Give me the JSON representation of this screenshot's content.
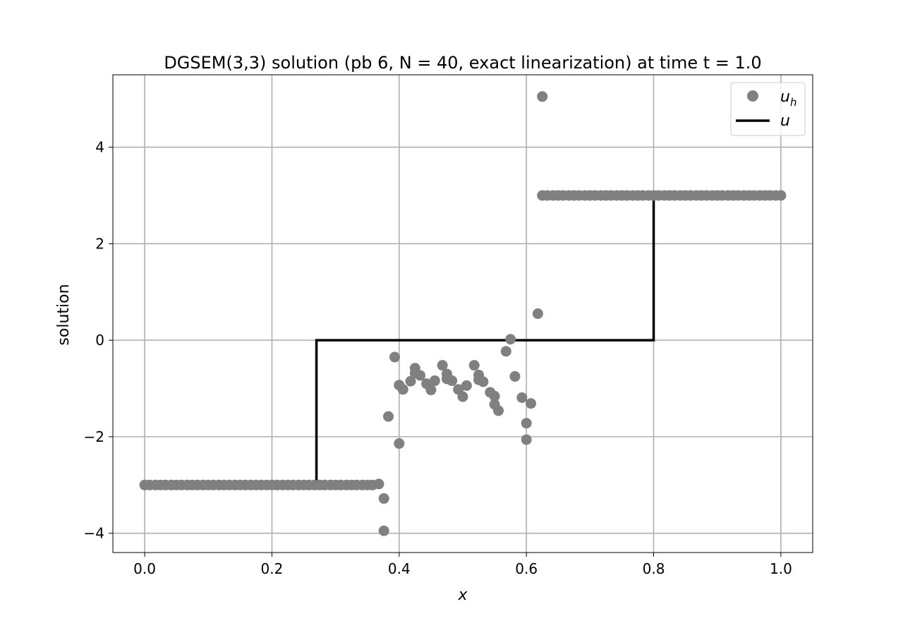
{
  "chart_data": {
    "type": "scatter",
    "title": "DGSEM(3,3) solution (pb 6, N = 40, exact linearization) at time t = 1.0",
    "xlabel": "x",
    "ylabel": "solution",
    "xlim": [
      -0.05,
      1.05
    ],
    "ylim": [
      -4.4,
      5.5
    ],
    "xticks": [
      0.0,
      0.2,
      0.4,
      0.6,
      0.8,
      1.0
    ],
    "xtick_labels": [
      "0.0",
      "0.2",
      "0.4",
      "0.6",
      "0.8",
      "1.0"
    ],
    "yticks": [
      -4,
      -2,
      0,
      2,
      4
    ],
    "ytick_labels": [
      "−4",
      "−2",
      "0",
      "2",
      "4"
    ],
    "grid": true,
    "legend_position": "top-right",
    "colors": {
      "uh": "#808080",
      "u": "#000000",
      "grid": "#b0b0b0"
    },
    "series": [
      {
        "name": "u",
        "legend_base": "u",
        "legend_sub": "h",
        "kind": "scatter",
        "points": [
          [
            0.0,
            -3.0
          ],
          [
            0.008,
            -3.0
          ],
          [
            0.017,
            -3.0
          ],
          [
            0.025,
            -3.0
          ],
          [
            0.033,
            -3.0
          ],
          [
            0.042,
            -3.0
          ],
          [
            0.05,
            -3.0
          ],
          [
            0.058,
            -3.0
          ],
          [
            0.067,
            -3.0
          ],
          [
            0.075,
            -3.0
          ],
          [
            0.083,
            -3.0
          ],
          [
            0.092,
            -3.0
          ],
          [
            0.1,
            -3.0
          ],
          [
            0.108,
            -3.0
          ],
          [
            0.117,
            -3.0
          ],
          [
            0.125,
            -3.0
          ],
          [
            0.133,
            -3.0
          ],
          [
            0.142,
            -3.0
          ],
          [
            0.15,
            -3.0
          ],
          [
            0.158,
            -3.0
          ],
          [
            0.167,
            -3.0
          ],
          [
            0.175,
            -3.0
          ],
          [
            0.183,
            -3.0
          ],
          [
            0.192,
            -3.0
          ],
          [
            0.2,
            -3.0
          ],
          [
            0.208,
            -3.0
          ],
          [
            0.217,
            -3.0
          ],
          [
            0.225,
            -3.0
          ],
          [
            0.233,
            -3.0
          ],
          [
            0.242,
            -3.0
          ],
          [
            0.25,
            -3.0
          ],
          [
            0.258,
            -3.0
          ],
          [
            0.267,
            -3.0
          ],
          [
            0.275,
            -3.0
          ],
          [
            0.283,
            -3.0
          ],
          [
            0.292,
            -3.0
          ],
          [
            0.3,
            -3.0
          ],
          [
            0.308,
            -3.0
          ],
          [
            0.317,
            -3.0
          ],
          [
            0.325,
            -3.0
          ],
          [
            0.333,
            -3.0
          ],
          [
            0.342,
            -3.0
          ],
          [
            0.35,
            -3.0
          ],
          [
            0.358,
            -3.0
          ],
          [
            0.368,
            -2.98
          ],
          [
            0.376,
            -3.28
          ],
          [
            0.376,
            -3.95
          ],
          [
            0.383,
            -1.58
          ],
          [
            0.393,
            -0.35
          ],
          [
            0.4,
            -0.93
          ],
          [
            0.4,
            -2.14
          ],
          [
            0.406,
            -1.02
          ],
          [
            0.418,
            -0.85
          ],
          [
            0.425,
            -0.58
          ],
          [
            0.425,
            -0.68
          ],
          [
            0.433,
            -0.73
          ],
          [
            0.443,
            -0.9
          ],
          [
            0.45,
            -1.03
          ],
          [
            0.456,
            -0.84
          ],
          [
            0.468,
            -0.52
          ],
          [
            0.475,
            -0.7
          ],
          [
            0.475,
            -0.8
          ],
          [
            0.483,
            -0.84
          ],
          [
            0.493,
            -1.02
          ],
          [
            0.5,
            -1.17
          ],
          [
            0.506,
            -0.94
          ],
          [
            0.518,
            -0.52
          ],
          [
            0.525,
            -0.72
          ],
          [
            0.525,
            -0.82
          ],
          [
            0.532,
            -0.86
          ],
          [
            0.543,
            -1.08
          ],
          [
            0.55,
            -1.33
          ],
          [
            0.55,
            -1.16
          ],
          [
            0.556,
            -1.46
          ],
          [
            0.568,
            -0.23
          ],
          [
            0.575,
            0.02
          ],
          [
            0.582,
            -0.75
          ],
          [
            0.593,
            -1.19
          ],
          [
            0.6,
            -1.72
          ],
          [
            0.6,
            -2.06
          ],
          [
            0.607,
            -1.31
          ],
          [
            0.618,
            0.55
          ],
          [
            0.625,
            5.05
          ],
          [
            0.625,
            3.0
          ],
          [
            0.633,
            3.0
          ],
          [
            0.642,
            3.0
          ],
          [
            0.65,
            3.0
          ],
          [
            0.658,
            3.0
          ],
          [
            0.667,
            3.0
          ],
          [
            0.675,
            3.0
          ],
          [
            0.683,
            3.0
          ],
          [
            0.692,
            3.0
          ],
          [
            0.7,
            3.0
          ],
          [
            0.708,
            3.0
          ],
          [
            0.717,
            3.0
          ],
          [
            0.725,
            3.0
          ],
          [
            0.733,
            3.0
          ],
          [
            0.742,
            3.0
          ],
          [
            0.75,
            3.0
          ],
          [
            0.758,
            3.0
          ],
          [
            0.767,
            3.0
          ],
          [
            0.775,
            3.0
          ],
          [
            0.783,
            3.0
          ],
          [
            0.792,
            3.0
          ],
          [
            0.8,
            3.0
          ],
          [
            0.808,
            3.0
          ],
          [
            0.817,
            3.0
          ],
          [
            0.825,
            3.0
          ],
          [
            0.833,
            3.0
          ],
          [
            0.842,
            3.0
          ],
          [
            0.85,
            3.0
          ],
          [
            0.858,
            3.0
          ],
          [
            0.867,
            3.0
          ],
          [
            0.875,
            3.0
          ],
          [
            0.883,
            3.0
          ],
          [
            0.892,
            3.0
          ],
          [
            0.9,
            3.0
          ],
          [
            0.908,
            3.0
          ],
          [
            0.917,
            3.0
          ],
          [
            0.925,
            3.0
          ],
          [
            0.933,
            3.0
          ],
          [
            0.942,
            3.0
          ],
          [
            0.95,
            3.0
          ],
          [
            0.958,
            3.0
          ],
          [
            0.967,
            3.0
          ],
          [
            0.975,
            3.0
          ],
          [
            0.983,
            3.0
          ],
          [
            0.992,
            3.0
          ],
          [
            1.0,
            3.0
          ]
        ]
      },
      {
        "name": "u",
        "legend_base": "u",
        "legend_sub": "",
        "kind": "line",
        "points": [
          [
            0.0,
            -3.0
          ],
          [
            0.27,
            -3.0
          ],
          [
            0.27,
            0.0
          ],
          [
            0.8,
            0.0
          ],
          [
            0.8,
            3.0
          ],
          [
            1.0,
            3.0
          ]
        ]
      }
    ]
  }
}
